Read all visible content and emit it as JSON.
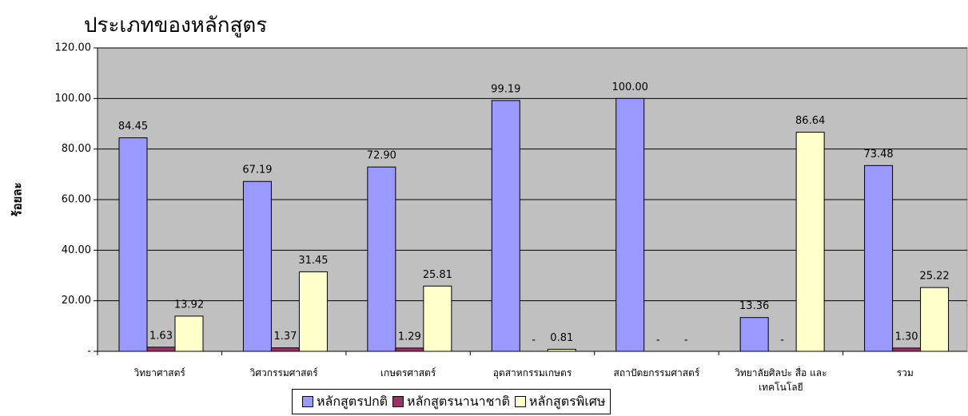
{
  "chart_data": {
    "type": "bar",
    "title": "ประเภทของหลักสูตร",
    "y_label": "ร้อยละ",
    "categories": [
      "วิทยาศาสตร์",
      "วิศวกรรมศาสตร์",
      "เกษตรศาสตร์",
      "อุตสาหกรรมเกษตร",
      "สถาปัตยกรรมศาสตร์",
      "วิทยาลัยศิลปะ สื่อ และเทคโนโลยี",
      "รวม"
    ],
    "series": [
      {
        "name": "หลักสูตรปกติ",
        "color": "#9999ff",
        "values": [
          84.45,
          67.19,
          72.9,
          99.19,
          100,
          13.36,
          73.48
        ],
        "value_labels": [
          "84.45",
          "67.19",
          "72.90",
          "99.19",
          "100.00",
          "13.36",
          "73.48"
        ]
      },
      {
        "name": "หลักสูตรนานาชาติ",
        "color": "#993366",
        "values": [
          1.63,
          1.37,
          1.29,
          0,
          0,
          0,
          1.3
        ],
        "value_labels": [
          "1.63",
          "1.37",
          "1.29",
          "-",
          "-",
          "-",
          "1.30"
        ]
      },
      {
        "name": "หลักสูตรพิเศษ",
        "color": "#ffffcc",
        "values": [
          13.92,
          31.45,
          25.81,
          0.81,
          0,
          86.64,
          25.22
        ],
        "value_labels": [
          "13.92",
          "31.45",
          "25.81",
          "0.81",
          "-",
          "86.64",
          "25.22"
        ]
      }
    ],
    "ylim": [
      0,
      120
    ],
    "yticks": [
      {
        "value": 0,
        "label": "-"
      },
      {
        "value": 20,
        "label": "20.00"
      },
      {
        "value": 40,
        "label": "40.00"
      },
      {
        "value": 60,
        "label": "60.00"
      },
      {
        "value": 80,
        "label": "80.00"
      },
      {
        "value": 100,
        "label": "100.00"
      },
      {
        "value": 120,
        "label": "120.00"
      }
    ],
    "grid": true,
    "legend": "bottom"
  }
}
